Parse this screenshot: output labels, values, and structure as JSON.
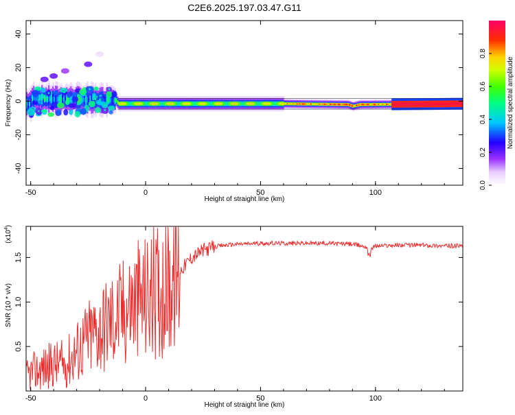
{
  "title": "C2E6.2025.197.03.47.G11",
  "chart_data": [
    {
      "type": "heatmap",
      "xlabel": "Height of straight line (km)",
      "ylabel": "Frequency (Hz)",
      "xlim": [
        -52,
        138
      ],
      "ylim": [
        -50,
        48
      ],
      "xticks": [
        -50,
        0,
        50,
        100
      ],
      "yticks": [
        40,
        20,
        0,
        -20,
        -40
      ],
      "grid": false,
      "colorbar": {
        "label": "Normalized spectral amplitude",
        "range": [
          0,
          1
        ],
        "ticks": [
          "0.0",
          "0.2",
          "0.4",
          "0.6",
          "0.8"
        ],
        "colors": [
          "#ffffff",
          "#d9b3ff",
          "#8a2be2",
          "#2000ff",
          "#00c8ff",
          "#00ff60",
          "#b0ff00",
          "#ffd000",
          "#ff3000",
          "#ff0060"
        ]
      },
      "ridge": [
        {
          "x": -50,
          "freq": 1.5
        },
        {
          "x": -13,
          "freq": 0.5
        },
        {
          "x": -12,
          "freq": -1.5
        },
        {
          "x": 60,
          "freq": -1.5
        },
        {
          "x": 88,
          "freq": -2
        },
        {
          "x": 90,
          "freq": -3
        },
        {
          "x": 93,
          "freq": -2
        },
        {
          "x": 138,
          "freq": -1.5
        }
      ],
      "blobs": [
        {
          "x": -44,
          "freq": 13,
          "level": 0.2
        },
        {
          "x": -40,
          "freq": 15,
          "level": 0.2
        },
        {
          "x": -35,
          "freq": 18,
          "level": 0.15
        },
        {
          "x": -25,
          "freq": 22,
          "level": 0.2
        },
        {
          "x": -20,
          "freq": 28,
          "level": 0.05
        }
      ]
    },
    {
      "type": "line",
      "xlabel": "Height of straight line (km)",
      "ylabel": "SNR (10 * v/v)",
      "y_multiplier_label": "(x10^4)",
      "y_multiplier_base": "(x10",
      "y_multiplier_exp": "4",
      "y_multiplier_close": ")",
      "xlim": [
        -52,
        138
      ],
      "ylim": [
        0,
        1.85
      ],
      "xticks": [
        -50,
        0,
        50,
        100
      ],
      "yticks": [
        0.5,
        1.0,
        1.5
      ],
      "line_color": "#ee2b2b",
      "series": [
        {
          "x": [
            -52,
            -50,
            -45,
            -40,
            -35,
            -30,
            -25,
            -20,
            -15,
            -12,
            -10,
            -5,
            0,
            5,
            10,
            15,
            20,
            25,
            30,
            35,
            40,
            50,
            60,
            70,
            80,
            90,
            96,
            98,
            100,
            110,
            120,
            130,
            138
          ],
          "y": [
            0.15,
            0.2,
            0.25,
            0.3,
            0.3,
            0.45,
            0.6,
            0.7,
            0.8,
            0.85,
            0.9,
            1.0,
            1.05,
            1.12,
            1.2,
            1.35,
            1.5,
            1.58,
            1.62,
            1.64,
            1.65,
            1.66,
            1.66,
            1.66,
            1.66,
            1.65,
            1.62,
            1.6,
            1.63,
            1.64,
            1.64,
            1.63,
            1.63
          ]
        }
      ]
    }
  ]
}
